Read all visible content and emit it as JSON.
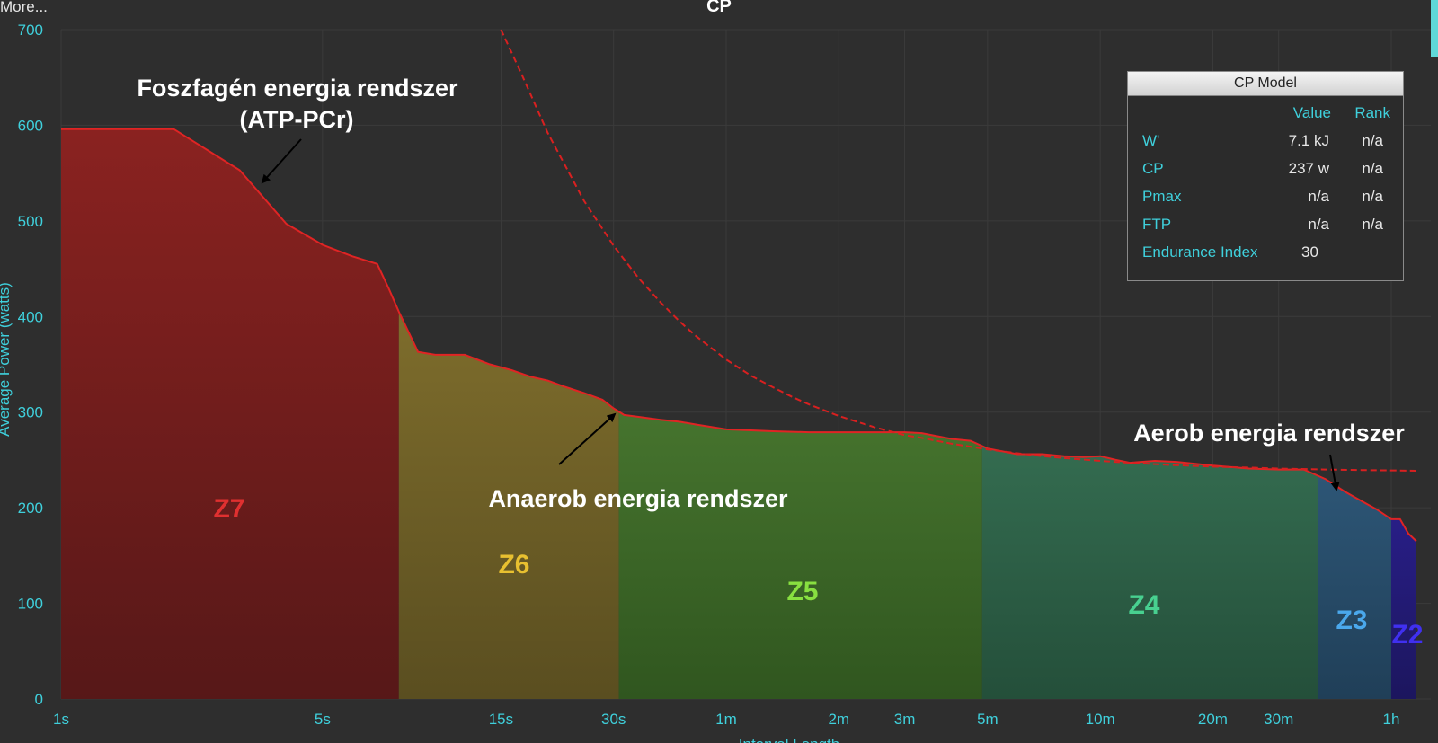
{
  "header": {
    "more_label": "More...",
    "title": "CP"
  },
  "colors": {
    "background": "#2e2e2e",
    "axis_text": "#3fd0dc",
    "curve": "#e02020",
    "z7": "#7a1e1e",
    "z6": "#76672a",
    "z5": "#3f6a2a",
    "z4": "#2f6448",
    "z3": "#2a4f6c",
    "z2": "#24206e"
  },
  "chart_data": {
    "type": "area",
    "title": "CP",
    "xlabel": "Interval Length",
    "ylabel": "Average Power (watts)",
    "x_scale": "log",
    "x_unit": "seconds",
    "ylim": [
      0,
      700
    ],
    "xlim": [
      1,
      4200
    ],
    "x_ticks": [
      {
        "label": "1s",
        "value": 1
      },
      {
        "label": "5s",
        "value": 5
      },
      {
        "label": "15s",
        "value": 15
      },
      {
        "label": "30s",
        "value": 30
      },
      {
        "label": "1m",
        "value": 60
      },
      {
        "label": "2m",
        "value": 120
      },
      {
        "label": "3m",
        "value": 180
      },
      {
        "label": "5m",
        "value": 300
      },
      {
        "label": "10m",
        "value": 600
      },
      {
        "label": "20m",
        "value": 1200
      },
      {
        "label": "30m",
        "value": 1800
      },
      {
        "label": "1h",
        "value": 3600
      }
    ],
    "y_ticks": [
      {
        "label": "0",
        "value": 0
      },
      {
        "label": "100",
        "value": 100
      },
      {
        "label": "200",
        "value": 200
      },
      {
        "label": "300",
        "value": 300
      },
      {
        "label": "400",
        "value": 400
      },
      {
        "label": "500",
        "value": 500
      },
      {
        "label": "600",
        "value": 600
      },
      {
        "label": "700",
        "value": 700
      }
    ],
    "power_curve": {
      "x": [
        1,
        2,
        3,
        4,
        5,
        6,
        7,
        7.5,
        8,
        9,
        10,
        12,
        14,
        16,
        18,
        20,
        22,
        25,
        28,
        30,
        32,
        35,
        40,
        45,
        50,
        60,
        80,
        100,
        120,
        150,
        180,
        200,
        240,
        270,
        300,
        360,
        420,
        480,
        540,
        600,
        660,
        720,
        840,
        960,
        1080,
        1200,
        1500,
        1800,
        2100,
        2400,
        2700,
        3000,
        3300,
        3600,
        3800,
        4000,
        4200
      ],
      "y": [
        596,
        596,
        553,
        497,
        475,
        463,
        455,
        430,
        405,
        363,
        360,
        360,
        350,
        344,
        337,
        333,
        327,
        320,
        313,
        304,
        297,
        295,
        292,
        290,
        287,
        282,
        280,
        279,
        279,
        279,
        279,
        278,
        272,
        270,
        262,
        256,
        256,
        254,
        253,
        254,
        250,
        247,
        249,
        248,
        246,
        244,
        241,
        240,
        240,
        230,
        217,
        207,
        198,
        188,
        188,
        173,
        165
      ]
    },
    "model_curve": {
      "x": [
        15,
        17,
        20,
        25,
        30,
        35,
        40,
        45,
        50,
        60,
        70,
        80,
        90,
        100,
        120,
        150,
        180,
        200,
        240,
        300,
        360,
        420,
        480,
        600,
        720,
        900,
        1200,
        1500,
        1800,
        2400,
        3000,
        3600,
        4200
      ],
      "y": [
        700,
        654,
        592,
        521,
        474,
        440,
        415,
        395,
        379,
        355,
        338,
        326,
        316,
        308,
        296,
        284,
        276,
        273,
        267,
        261,
        257,
        254,
        252,
        249,
        247,
        245,
        243,
        242,
        241,
        240,
        239.4,
        239,
        238.7
      ]
    },
    "zones": [
      {
        "name": "Z7",
        "x_start": 1,
        "x_end": 8,
        "color": "#e03030"
      },
      {
        "name": "Z6",
        "x_start": 8,
        "x_end": 31,
        "color": "#e8c030"
      },
      {
        "name": "Z5",
        "x_start": 31,
        "x_end": 290,
        "color": "#88e040"
      },
      {
        "name": "Z4",
        "x_start": 290,
        "x_end": 2300,
        "color": "#48d090"
      },
      {
        "name": "Z3",
        "x_start": 2300,
        "x_end": 3600,
        "color": "#4aa8ec"
      },
      {
        "name": "Z2",
        "x_start": 3600,
        "x_end": 4200,
        "color": "#4030f0"
      }
    ],
    "annotations": [
      {
        "text": "Foszfagén energia rendszer",
        "x": 2.8,
        "y": 632
      },
      {
        "text": "(ATP-PCr)",
        "x": 3.6,
        "y": 600
      },
      {
        "text": "Anaerob energia rendszer",
        "x": 30,
        "y": 207
      },
      {
        "text": "Aerob energia rendszer",
        "x": 2000,
        "y": 280
      }
    ],
    "cp_model": {
      "title": "CP Model",
      "columns": [
        "Value",
        "Rank"
      ],
      "rows": [
        {
          "label": "W'",
          "value": "7.1 kJ",
          "rank": "n/a"
        },
        {
          "label": "CP",
          "value": "237 w",
          "rank": "n/a"
        },
        {
          "label": "Pmax",
          "value": "n/a",
          "rank": "n/a"
        },
        {
          "label": "FTP",
          "value": "n/a",
          "rank": "n/a"
        },
        {
          "label": "Endurance Index",
          "value": "30",
          "rank": ""
        }
      ]
    }
  }
}
